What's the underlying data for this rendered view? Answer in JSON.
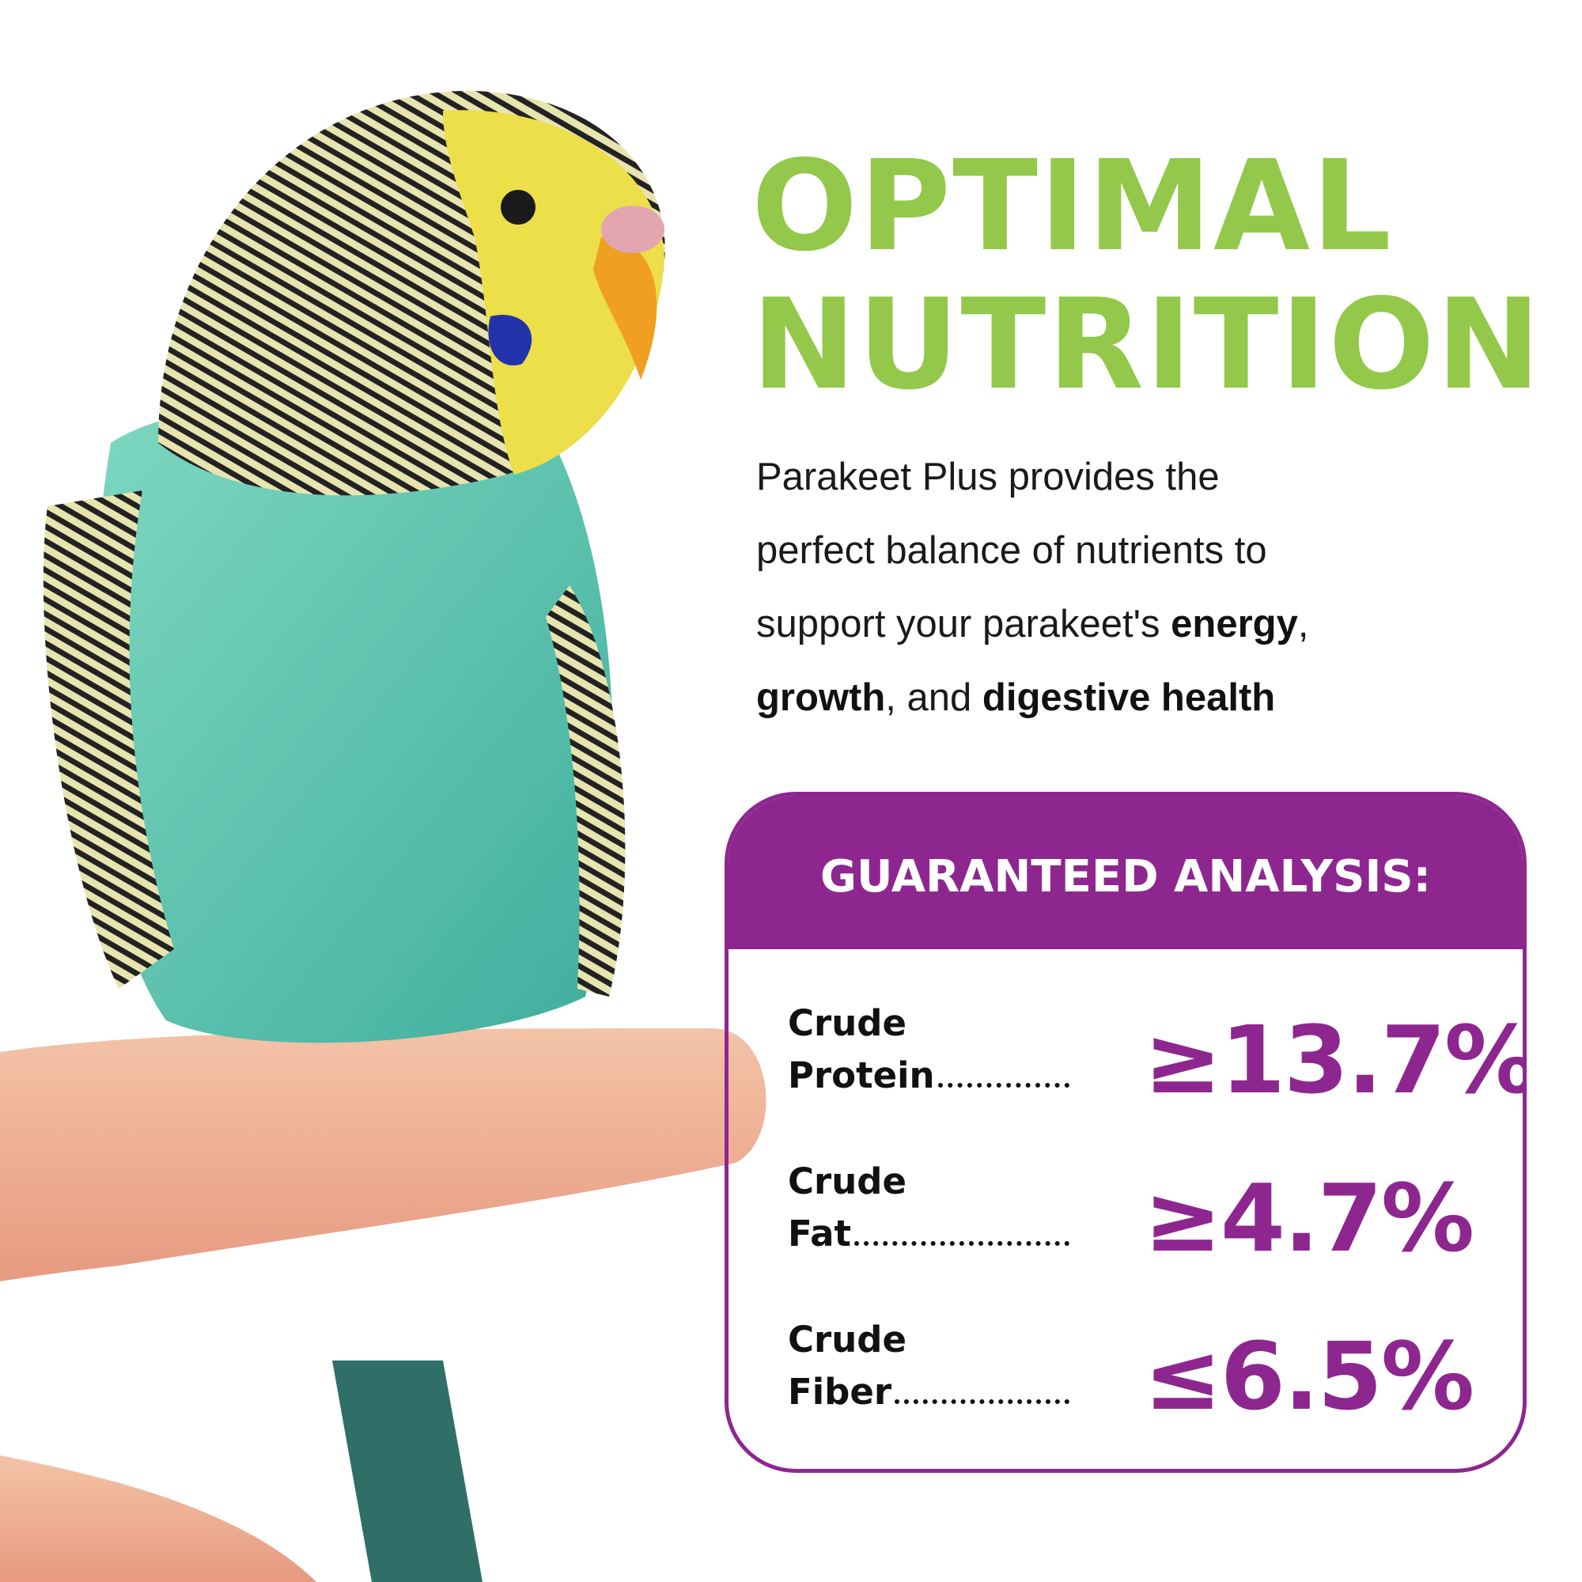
{
  "headline": {
    "lines": [
      "OPTIMAL",
      "NUTRITION"
    ]
  },
  "body": {
    "lines": [
      [
        {
          "text": "Parakeet Plus provides the"
        }
      ],
      [
        {
          "text": "perfect balance of nutrients to"
        }
      ],
      [
        {
          "text": "support your parakeet's "
        },
        {
          "text": "energy",
          "bold": true
        },
        {
          "text": ","
        }
      ],
      [
        {
          "text": "growth",
          "bold": true
        },
        {
          "text": ", and "
        },
        {
          "text": "digestive health",
          "bold": true
        }
      ]
    ]
  },
  "analysis": {
    "title": "GUARANTEED ANALYSIS:",
    "rows": [
      {
        "label": [
          "Crude",
          "Protein"
        ],
        "value": "≥13.7%"
      },
      {
        "label": [
          "Crude",
          "Fat"
        ],
        "value": "≥4.7%"
      },
      {
        "label": [
          "Crude",
          "Fiber"
        ],
        "value": "≤6.5%"
      }
    ]
  }
}
